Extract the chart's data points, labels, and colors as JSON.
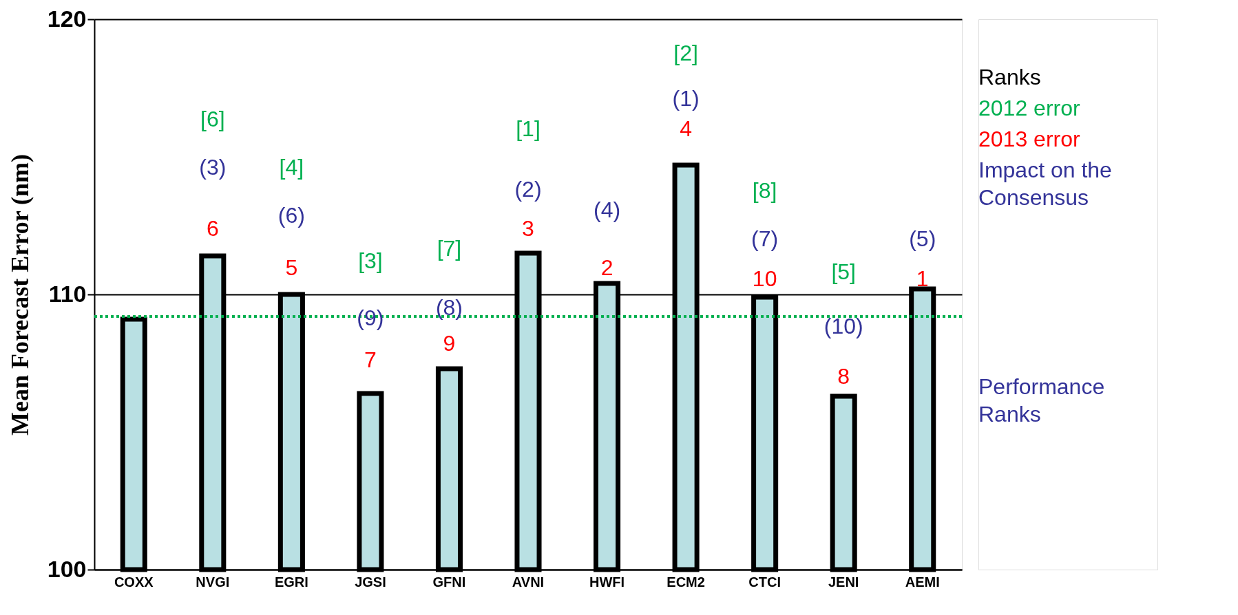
{
  "chart_data": {
    "type": "bar",
    "ylabel": "Mean Forecast Error (nm)",
    "categories": [
      "COXX",
      "NVGI",
      "EGRI",
      "JGSI",
      "GFNI",
      "AVNI",
      "HWFI",
      "ECM2",
      "CTCI",
      "JENI",
      "AEMI"
    ],
    "values": [
      109.1,
      111.4,
      110.0,
      106.4,
      107.3,
      111.5,
      110.4,
      114.7,
      109.9,
      106.3,
      110.2
    ],
    "color": "#b9e0e3",
    "ylim": [
      100,
      120
    ],
    "yticks": [
      100,
      110,
      120
    ],
    "grid": "y",
    "ref_lines": [
      {
        "axis": "y",
        "value": 109.2,
        "color": "#00b050",
        "line_style": "dotted"
      }
    ],
    "annotations": [
      "6",
      "(3)",
      "[6]",
      "5",
      "(6)",
      "[4]",
      "7",
      "(9)",
      "[3]",
      "9",
      "(8)",
      "[7]",
      "3",
      "(2)",
      "[1]",
      "2",
      "(4)",
      "4",
      "(1)",
      "[2]",
      "10",
      "(7)",
      "[8]",
      "8",
      "(10)",
      "[5]",
      "1",
      "(5)",
      "Ranks",
      "2012 error",
      "2013 error",
      "Impact on the\nConsensus",
      "Performance\nRanks"
    ]
  }
}
